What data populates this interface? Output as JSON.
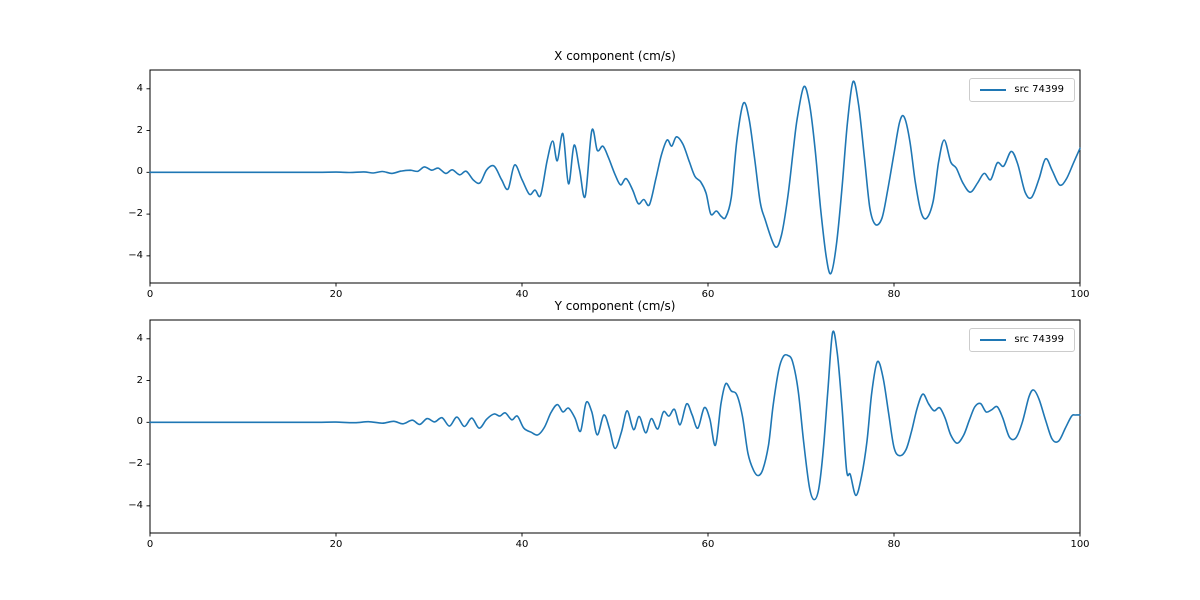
{
  "figure": {
    "background": "#ffffff",
    "spine_color": "#000000"
  },
  "chart_data": [
    {
      "type": "line",
      "title": "X component (cm/s)",
      "xlabel": "",
      "ylabel": "",
      "legend": {
        "label": "src 74399",
        "position": "upper right"
      },
      "line_color": "#1f77b4",
      "grid": false,
      "xlim": [
        0,
        100
      ],
      "ylim": [
        -5.3,
        4.9
      ],
      "xticks": [
        0,
        20,
        40,
        60,
        80,
        100
      ],
      "yticks": [
        -4,
        -2,
        0,
        2,
        4
      ],
      "series": [
        {
          "name": "src 74399",
          "points": [
            [
              0,
              0
            ],
            [
              3,
              0
            ],
            [
              6,
              0
            ],
            [
              9,
              0
            ],
            [
              12,
              0
            ],
            [
              15,
              0
            ],
            [
              18,
              0
            ],
            [
              20,
              0.01
            ],
            [
              21.5,
              -0.01
            ],
            [
              23,
              0.02
            ],
            [
              24,
              -0.03
            ],
            [
              25,
              0.04
            ],
            [
              26,
              -0.05
            ],
            [
              27,
              0.06
            ],
            [
              28,
              0.1
            ],
            [
              28.8,
              0.05
            ],
            [
              29.5,
              0.26
            ],
            [
              30.3,
              0.1
            ],
            [
              31,
              0.2
            ],
            [
              31.8,
              -0.05
            ],
            [
              32.5,
              0.12
            ],
            [
              33.3,
              -0.12
            ],
            [
              34,
              0.05
            ],
            [
              34.8,
              -0.38
            ],
            [
              35.5,
              -0.5
            ],
            [
              36.2,
              0.12
            ],
            [
              37,
              0.3
            ],
            [
              37.8,
              -0.35
            ],
            [
              38.5,
              -0.8
            ],
            [
              39.2,
              0.35
            ],
            [
              40,
              -0.35
            ],
            [
              40.8,
              -1.05
            ],
            [
              41.4,
              -0.85
            ],
            [
              42,
              -1.1
            ],
            [
              42.7,
              0.55
            ],
            [
              43.3,
              1.5
            ],
            [
              43.8,
              0.55
            ],
            [
              44.4,
              1.85
            ],
            [
              45,
              -0.55
            ],
            [
              45.6,
              1.3
            ],
            [
              46.2,
              0.1
            ],
            [
              46.8,
              -1.15
            ],
            [
              47.5,
              2.0
            ],
            [
              48.1,
              1.05
            ],
            [
              48.7,
              1.25
            ],
            [
              49.3,
              0.7
            ],
            [
              50,
              -0.1
            ],
            [
              50.6,
              -0.6
            ],
            [
              51.2,
              -0.3
            ],
            [
              51.9,
              -0.85
            ],
            [
              52.5,
              -1.5
            ],
            [
              53.1,
              -1.3
            ],
            [
              53.7,
              -1.55
            ],
            [
              54.4,
              -0.3
            ],
            [
              55,
              0.85
            ],
            [
              55.6,
              1.55
            ],
            [
              56.1,
              1.25
            ],
            [
              56.6,
              1.7
            ],
            [
              57.3,
              1.35
            ],
            [
              58,
              0.5
            ],
            [
              58.6,
              -0.2
            ],
            [
              59.2,
              -0.45
            ],
            [
              59.8,
              -1.0
            ],
            [
              60.3,
              -2.0
            ],
            [
              60.9,
              -1.85
            ],
            [
              61.4,
              -2.1
            ],
            [
              61.9,
              -2.15
            ],
            [
              62.5,
              -1.2
            ],
            [
              63.1,
              1.5
            ],
            [
              63.8,
              3.3
            ],
            [
              64.4,
              2.6
            ],
            [
              65,
              0.7
            ],
            [
              65.6,
              -1.4
            ],
            [
              66.1,
              -2.2
            ],
            [
              67.2,
              -3.55
            ],
            [
              67.9,
              -3.0
            ],
            [
              68.6,
              -1.1
            ],
            [
              69.2,
              1.2
            ],
            [
              69.6,
              2.6
            ],
            [
              70.3,
              4.1
            ],
            [
              70.9,
              3.3
            ],
            [
              71.5,
              1.2
            ],
            [
              72.1,
              -1.7
            ],
            [
              72.7,
              -4.0
            ],
            [
              73.2,
              -4.85
            ],
            [
              73.8,
              -3.5
            ],
            [
              74.4,
              -0.8
            ],
            [
              75,
              2.4
            ],
            [
              75.6,
              4.35
            ],
            [
              76.2,
              3.2
            ],
            [
              76.8,
              0.8
            ],
            [
              77.4,
              -1.7
            ],
            [
              78,
              -2.5
            ],
            [
              78.7,
              -2.2
            ],
            [
              79.3,
              -0.9
            ],
            [
              80,
              0.9
            ],
            [
              80.6,
              2.4
            ],
            [
              81.1,
              2.65
            ],
            [
              81.7,
              1.5
            ],
            [
              82.3,
              -0.5
            ],
            [
              82.9,
              -1.9
            ],
            [
              83.5,
              -2.2
            ],
            [
              84.2,
              -1.4
            ],
            [
              84.8,
              0.5
            ],
            [
              85.4,
              1.55
            ],
            [
              86.1,
              0.5
            ],
            [
              86.7,
              0.2
            ],
            [
              87.4,
              -0.5
            ],
            [
              88.2,
              -0.95
            ],
            [
              89,
              -0.5
            ],
            [
              89.7,
              -0.05
            ],
            [
              90.4,
              -0.35
            ],
            [
              91.1,
              0.45
            ],
            [
              91.8,
              0.3
            ],
            [
              92.6,
              1.0
            ],
            [
              93.3,
              0.4
            ],
            [
              94.1,
              -0.95
            ],
            [
              94.8,
              -1.2
            ],
            [
              95.6,
              -0.3
            ],
            [
              96.3,
              0.65
            ],
            [
              97,
              0.1
            ],
            [
              97.8,
              -0.6
            ],
            [
              98.5,
              -0.35
            ],
            [
              99.3,
              0.45
            ],
            [
              100,
              1.15
            ]
          ]
        }
      ]
    },
    {
      "type": "line",
      "title": "Y component (cm/s)",
      "xlabel": "",
      "ylabel": "",
      "legend": {
        "label": "src 74399",
        "position": "upper right"
      },
      "line_color": "#1f77b4",
      "grid": false,
      "xlim": [
        0,
        100
      ],
      "ylim": [
        -5.3,
        4.9
      ],
      "xticks": [
        0,
        20,
        40,
        60,
        80,
        100
      ],
      "yticks": [
        -4,
        -2,
        0,
        2,
        4
      ],
      "series": [
        {
          "name": "src 74399",
          "points": [
            [
              0,
              0
            ],
            [
              3,
              0
            ],
            [
              6,
              0
            ],
            [
              9,
              0
            ],
            [
              12,
              0
            ],
            [
              15,
              0
            ],
            [
              18,
              0
            ],
            [
              20,
              0.01
            ],
            [
              22,
              -0.02
            ],
            [
              23.5,
              0.03
            ],
            [
              25,
              -0.04
            ],
            [
              26.2,
              0.05
            ],
            [
              27.2,
              -0.07
            ],
            [
              28.2,
              0.1
            ],
            [
              29,
              -0.1
            ],
            [
              29.8,
              0.18
            ],
            [
              30.6,
              0.02
            ],
            [
              31.4,
              0.22
            ],
            [
              32.2,
              -0.18
            ],
            [
              33,
              0.25
            ],
            [
              33.8,
              -0.2
            ],
            [
              34.6,
              0.2
            ],
            [
              35.4,
              -0.28
            ],
            [
              36.2,
              0.15
            ],
            [
              37,
              0.4
            ],
            [
              37.6,
              0.3
            ],
            [
              38.2,
              0.45
            ],
            [
              38.9,
              0.12
            ],
            [
              39.5,
              0.3
            ],
            [
              40.2,
              -0.28
            ],
            [
              41,
              -0.48
            ],
            [
              41.7,
              -0.6
            ],
            [
              42.4,
              -0.25
            ],
            [
              43.1,
              0.45
            ],
            [
              43.8,
              0.85
            ],
            [
              44.4,
              0.5
            ],
            [
              45,
              0.68
            ],
            [
              45.7,
              0.2
            ],
            [
              46.3,
              -0.42
            ],
            [
              46.9,
              0.95
            ],
            [
              47.5,
              0.5
            ],
            [
              48.1,
              -0.6
            ],
            [
              48.8,
              0.35
            ],
            [
              49.4,
              -0.3
            ],
            [
              50,
              -1.25
            ],
            [
              50.7,
              -0.45
            ],
            [
              51.3,
              0.55
            ],
            [
              52,
              -0.35
            ],
            [
              52.6,
              0.28
            ],
            [
              53.3,
              -0.5
            ],
            [
              53.9,
              0.18
            ],
            [
              54.6,
              -0.32
            ],
            [
              55.2,
              0.5
            ],
            [
              55.8,
              0.3
            ],
            [
              56.4,
              0.62
            ],
            [
              57,
              -0.12
            ],
            [
              57.7,
              0.88
            ],
            [
              58.3,
              0.35
            ],
            [
              58.9,
              -0.28
            ],
            [
              59.6,
              0.7
            ],
            [
              60.2,
              0.15
            ],
            [
              60.8,
              -1.1
            ],
            [
              61.4,
              0.9
            ],
            [
              61.9,
              1.85
            ],
            [
              62.5,
              1.5
            ],
            [
              63.1,
              1.32
            ],
            [
              63.7,
              0.3
            ],
            [
              64.3,
              -1.5
            ],
            [
              64.9,
              -2.3
            ],
            [
              65.4,
              -2.55
            ],
            [
              65.9,
              -2.25
            ],
            [
              66.5,
              -1.1
            ],
            [
              67,
              0.8
            ],
            [
              67.6,
              2.5
            ],
            [
              68.1,
              3.15
            ],
            [
              68.6,
              3.2
            ],
            [
              69.1,
              2.9
            ],
            [
              69.7,
              1.5
            ],
            [
              70.3,
              -1.0
            ],
            [
              70.9,
              -3.1
            ],
            [
              71.4,
              -3.7
            ],
            [
              71.9,
              -3.2
            ],
            [
              72.4,
              -1.3
            ],
            [
              72.9,
              1.6
            ],
            [
              73.4,
              4.3
            ],
            [
              73.9,
              3.3
            ],
            [
              74.4,
              0.8
            ],
            [
              74.9,
              -2.3
            ],
            [
              75.3,
              -2.5
            ],
            [
              75.9,
              -3.5
            ],
            [
              76.5,
              -2.6
            ],
            [
              77.1,
              -0.9
            ],
            [
              77.6,
              1.4
            ],
            [
              78.2,
              2.9
            ],
            [
              78.8,
              2.2
            ],
            [
              79.4,
              0.5
            ],
            [
              80,
              -1.2
            ],
            [
              80.6,
              -1.6
            ],
            [
              81.3,
              -1.3
            ],
            [
              81.9,
              -0.4
            ],
            [
              82.5,
              0.7
            ],
            [
              83.1,
              1.35
            ],
            [
              83.7,
              0.9
            ],
            [
              84.3,
              0.55
            ],
            [
              84.9,
              0.7
            ],
            [
              85.5,
              0.2
            ],
            [
              86.1,
              -0.6
            ],
            [
              86.8,
              -1.0
            ],
            [
              87.5,
              -0.6
            ],
            [
              88.1,
              0.1
            ],
            [
              88.7,
              0.75
            ],
            [
              89.3,
              0.9
            ],
            [
              89.9,
              0.5
            ],
            [
              90.5,
              0.6
            ],
            [
              91.1,
              0.75
            ],
            [
              91.7,
              0.2
            ],
            [
              92.4,
              -0.7
            ],
            [
              93.1,
              -0.75
            ],
            [
              93.8,
              0
            ],
            [
              94.5,
              1.2
            ],
            [
              95,
              1.55
            ],
            [
              95.6,
              1.1
            ],
            [
              96.3,
              0.1
            ],
            [
              97,
              -0.8
            ],
            [
              97.7,
              -0.9
            ],
            [
              98.4,
              -0.3
            ],
            [
              99.1,
              0.3
            ],
            [
              99.5,
              0.35
            ],
            [
              100,
              0.35
            ]
          ]
        }
      ]
    }
  ]
}
